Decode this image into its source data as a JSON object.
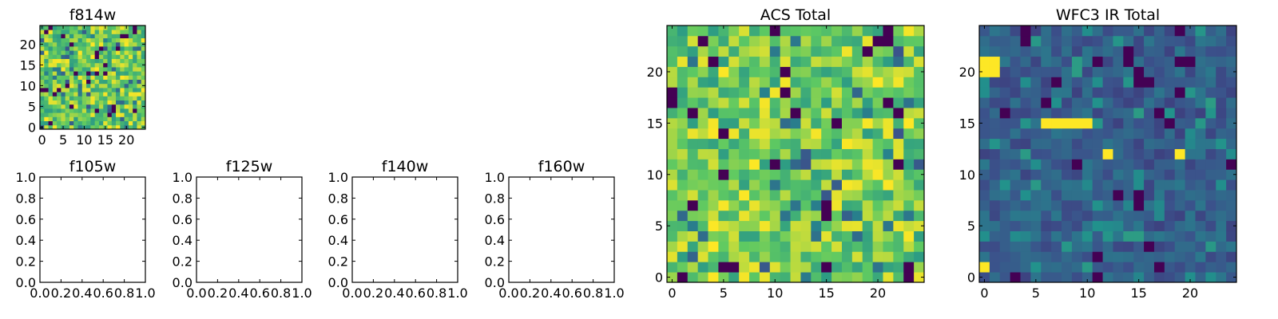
{
  "palette": [
    "#440154",
    "#3b528b",
    "#21918c",
    "#5ec962",
    "#fde725"
  ],
  "chart_data": [
    {
      "type": "heatmap",
      "title": "f814w",
      "grid_size": 25,
      "colormap": "viridis",
      "x_ticks": [
        "0",
        "5",
        "10",
        "15",
        "20"
      ],
      "y_ticks": [
        "0",
        "5",
        "10",
        "15",
        "20"
      ],
      "xlim": [
        -0.5,
        24.5
      ],
      "ylim": [
        -0.5,
        24.5
      ],
      "value_range": [
        0,
        1
      ],
      "pattern": "mostly high (green-yellow), sparse dark pixels",
      "seed": 3
    },
    {
      "type": "heatmap",
      "title": "ACS Total",
      "grid_size": 25,
      "colormap": "viridis",
      "x_ticks": [
        "0",
        "5",
        "10",
        "15",
        "20"
      ],
      "y_ticks": [
        "0",
        "5",
        "10",
        "15",
        "20"
      ],
      "xlim": [
        -0.5,
        24.5
      ],
      "ylim": [
        -0.5,
        24.5
      ],
      "value_range": [
        0,
        1
      ],
      "pattern": "mostly high (green-yellow), sparse dark pixels",
      "seed": 7
    },
    {
      "type": "heatmap",
      "title": "WFC3 IR Total",
      "grid_size": 25,
      "colormap": "viridis",
      "x_ticks": [
        "0",
        "5",
        "10",
        "15",
        "20"
      ],
      "y_ticks": [
        "0",
        "5",
        "10",
        "15",
        "20"
      ],
      "xlim": [
        -0.5,
        24.5
      ],
      "ylim": [
        -0.5,
        24.5
      ],
      "value_range": [
        0,
        1
      ],
      "pattern": "mostly low (blue), bright yellow horizontal streak at y=15 x=6-10, bright pixels at (0,20-21), (0,1), (12,12), (19,12)",
      "bright_cells": [
        [
          0,
          21
        ],
        [
          1,
          21
        ],
        [
          0,
          20
        ],
        [
          1,
          20
        ],
        [
          0,
          1
        ],
        [
          6,
          15
        ],
        [
          7,
          15
        ],
        [
          8,
          15
        ],
        [
          9,
          15
        ],
        [
          10,
          15
        ],
        [
          12,
          12
        ],
        [
          19,
          12
        ]
      ],
      "seed": 11
    },
    {
      "type": "line",
      "title": "f105w",
      "series": [],
      "x_ticks": [
        "0.0",
        "0.2",
        "0.4",
        "0.6",
        "0.8",
        "1.0"
      ],
      "y_ticks": [
        "0.0",
        "0.2",
        "0.4",
        "0.6",
        "0.8",
        "1.0"
      ],
      "xlim": [
        0,
        1
      ],
      "ylim": [
        0,
        1
      ]
    },
    {
      "type": "line",
      "title": "f125w",
      "series": [],
      "x_ticks": [
        "0.0",
        "0.2",
        "0.4",
        "0.6",
        "0.8",
        "1.0"
      ],
      "y_ticks": [
        "0.0",
        "0.2",
        "0.4",
        "0.6",
        "0.8",
        "1.0"
      ],
      "xlim": [
        0,
        1
      ],
      "ylim": [
        0,
        1
      ]
    },
    {
      "type": "line",
      "title": "f140w",
      "series": [],
      "x_ticks": [
        "0.0",
        "0.2",
        "0.4",
        "0.6",
        "0.8",
        "1.0"
      ],
      "y_ticks": [
        "0.0",
        "0.2",
        "0.4",
        "0.6",
        "0.8",
        "1.0"
      ],
      "xlim": [
        0,
        1
      ],
      "ylim": [
        0,
        1
      ]
    },
    {
      "type": "line",
      "title": "f160w",
      "series": [],
      "x_ticks": [
        "0.0",
        "0.2",
        "0.4",
        "0.6",
        "0.8",
        "1.0"
      ],
      "y_ticks": [
        "0.0",
        "0.2",
        "0.4",
        "0.6",
        "0.8",
        "1.0"
      ],
      "xlim": [
        0,
        1
      ],
      "ylim": [
        0,
        1
      ]
    }
  ]
}
